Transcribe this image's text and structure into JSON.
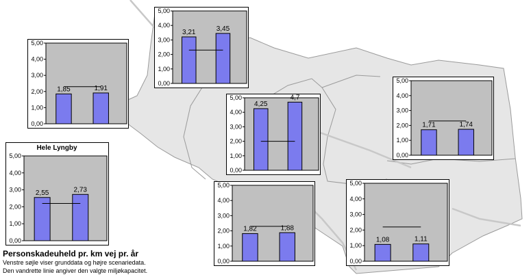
{
  "caption": {
    "title": "Personskadeuheld pr. km vej pr. år",
    "line1": "Venstre søjle viser grunddata og højre scenariedata.",
    "line2": "Den vandrette linie angiver den valgte miljøkapacitet."
  },
  "colors": {
    "map_fill": "#e6e6e6",
    "map_stroke": "#9a9a9a",
    "road": "#c8c8c8",
    "plot_area": "#c0c0c0",
    "bar": "#7b7bee",
    "bar_stroke": "#000000"
  },
  "chart_data": [
    {
      "type": "bar",
      "title": "",
      "yticks": [
        "0,00",
        "1,00",
        "2,00",
        "3,00",
        "4,00",
        "5,00"
      ],
      "ylim": [
        0,
        5
      ],
      "values": [
        1.85,
        1.91
      ],
      "labels": [
        "1,85",
        "1,91"
      ],
      "capacity": 2.3
    },
    {
      "type": "bar",
      "title": "",
      "yticks": [
        "0,00",
        "1,00",
        "2,00",
        "3,00",
        "4,00",
        "5,00"
      ],
      "ylim": [
        0,
        5
      ],
      "values": [
        3.21,
        3.45
      ],
      "labels": [
        "3,21",
        "3,45"
      ],
      "capacity": 2.3
    },
    {
      "type": "bar",
      "title": "",
      "yticks": [
        "0,00",
        "1,00",
        "2,00",
        "3,00",
        "4,00",
        "5,00"
      ],
      "ylim": [
        0,
        5
      ],
      "values": [
        4.25,
        4.7
      ],
      "labels": [
        "4,25",
        "4,7"
      ],
      "capacity": 2.0
    },
    {
      "type": "bar",
      "title": "",
      "yticks": [
        "0,00",
        "1,00",
        "2,00",
        "3,00",
        "4,00",
        "5,00"
      ],
      "ylim": [
        0,
        5
      ],
      "values": [
        1.71,
        1.74
      ],
      "labels": [
        "1,71",
        "1,74"
      ],
      "capacity": 2.3
    },
    {
      "type": "bar",
      "title": "Hele Lyngby",
      "yticks": [
        "0,00",
        "1,00",
        "2,00",
        "3,00",
        "4,00",
        "5,00"
      ],
      "ylim": [
        0,
        5
      ],
      "values": [
        2.55,
        2.73
      ],
      "labels": [
        "2,55",
        "2,73"
      ],
      "capacity": 2.2
    },
    {
      "type": "bar",
      "title": "",
      "yticks": [
        "0,00",
        "1,00",
        "2,00",
        "3,00",
        "4,00",
        "5,00"
      ],
      "ylim": [
        0,
        5
      ],
      "values": [
        1.82,
        1.88
      ],
      "labels": [
        "1,82",
        "1,88"
      ],
      "capacity": 2.3
    },
    {
      "type": "bar",
      "title": "",
      "yticks": [
        "0,00",
        "1,00",
        "2,00",
        "3,00",
        "4,00",
        "5,00"
      ],
      "ylim": [
        0,
        5
      ],
      "values": [
        1.08,
        1.11
      ],
      "labels": [
        "1,08",
        "1,11"
      ],
      "capacity": 2.2
    }
  ]
}
